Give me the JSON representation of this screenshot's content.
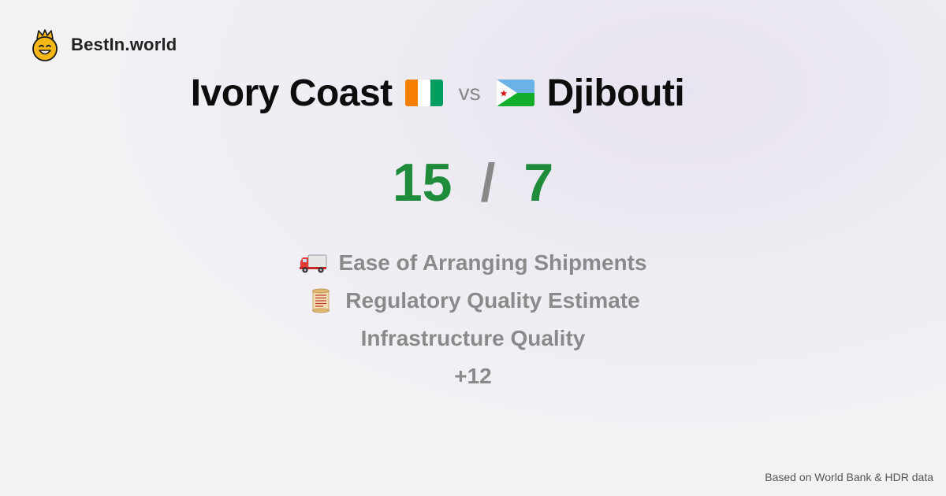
{
  "brand": {
    "name": "BestIn.world",
    "icon": "crowned-smiley-icon"
  },
  "comparison": {
    "left_country": "Ivory Coast",
    "left_flag": "ivory-coast-flag-icon",
    "vs_label": "vs",
    "right_country": "Djibouti",
    "right_flag": "djibouti-flag-icon"
  },
  "score": {
    "left": "15",
    "separator": "/",
    "right": "7",
    "color": "#1e8c3a"
  },
  "metrics": [
    {
      "icon": "delivery-truck-icon",
      "label": "Ease of Arranging Shipments"
    },
    {
      "icon": "scroll-icon",
      "label": "Regulatory Quality Estimate"
    },
    {
      "icon": "",
      "label": "Infrastructure Quality"
    }
  ],
  "more_label": "+12",
  "footer": {
    "source": "Based on World Bank & HDR data"
  }
}
